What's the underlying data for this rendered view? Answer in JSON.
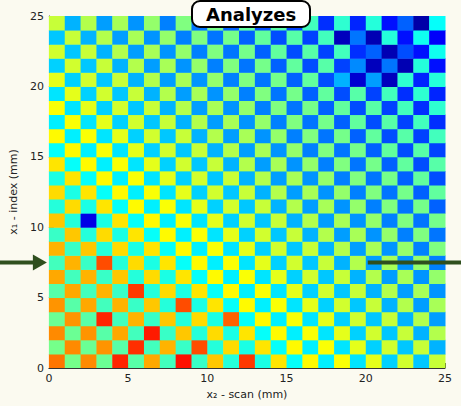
{
  "chart_data": {
    "type": "heatmap",
    "title": "Analyzes",
    "x_label": "x₂ - scan (mm)",
    "y_label": "x₁ - index (mm)",
    "xlim": [
      0,
      25
    ],
    "xticks": [
      0,
      5,
      10,
      15,
      20,
      25
    ],
    "ylim": [
      0,
      25
    ],
    "yticks": [
      0,
      5,
      10,
      15,
      20,
      25
    ],
    "x": [
      0.5,
      1.5,
      2.5,
      3.5,
      4.5,
      5.5,
      6.5,
      7.5,
      8.5,
      9.5,
      10.5,
      11.5,
      12.5,
      13.5,
      14.5,
      15.5,
      16.5,
      17.5,
      18.5,
      19.5,
      20.5,
      21.5,
      22.5,
      23.5,
      24.5
    ],
    "y": [
      0.5,
      1.5,
      2.5,
      3.5,
      4.5,
      5.5,
      6.5,
      7.5,
      8.5,
      9.5,
      10.5,
      11.5,
      12.5,
      13.5,
      14.5,
      15.5,
      16.5,
      17.5,
      18.5,
      19.5,
      20.5,
      21.5,
      22.5,
      23.5,
      24.5
    ],
    "zlim": [
      0,
      100
    ],
    "cells": [
      [
        76,
        49,
        74,
        48,
        84,
        46,
        71,
        44,
        86,
        43,
        68,
        41,
        82,
        40,
        65,
        38,
        63,
        36,
        62,
        35,
        60,
        33,
        58,
        32,
        57
      ],
      [
        49,
        74,
        48,
        73,
        46,
        83,
        44,
        70,
        43,
        80,
        41,
        66,
        40,
        65,
        38,
        63,
        36,
        62,
        35,
        60,
        33,
        58,
        32,
        57,
        30
      ],
      [
        74,
        48,
        73,
        46,
        71,
        44,
        85,
        43,
        68,
        41,
        66,
        40,
        65,
        38,
        63,
        36,
        62,
        35,
        60,
        33,
        58,
        32,
        57,
        30,
        55
      ],
      [
        48,
        73,
        46,
        84,
        44,
        70,
        43,
        68,
        41,
        66,
        40,
        78,
        38,
        63,
        36,
        62,
        35,
        60,
        33,
        58,
        32,
        57,
        30,
        55,
        28
      ],
      [
        73,
        46,
        71,
        44,
        70,
        43,
        68,
        41,
        80,
        40,
        65,
        38,
        63,
        36,
        62,
        35,
        60,
        33,
        58,
        32,
        57,
        30,
        55,
        28,
        54
      ],
      [
        46,
        71,
        44,
        70,
        43,
        82,
        41,
        66,
        40,
        65,
        38,
        63,
        36,
        62,
        35,
        60,
        33,
        58,
        32,
        57,
        30,
        55,
        28,
        54,
        27
      ],
      [
        71,
        44,
        70,
        43,
        68,
        41,
        66,
        40,
        65,
        38,
        63,
        36,
        62,
        35,
        60,
        33,
        58,
        32,
        57,
        30,
        55,
        28,
        54,
        27,
        52
      ],
      [
        44,
        70,
        43,
        80,
        41,
        66,
        40,
        65,
        38,
        63,
        36,
        62,
        35,
        60,
        33,
        58,
        32,
        57,
        30,
        55,
        28,
        54,
        27,
        52,
        25
      ],
      [
        70,
        43,
        68,
        41,
        66,
        40,
        65,
        38,
        63,
        36,
        62,
        35,
        60,
        33,
        58,
        32,
        57,
        30,
        55,
        28,
        54,
        27,
        52,
        25,
        50
      ],
      [
        43,
        68,
        41,
        66,
        40,
        65,
        38,
        63,
        36,
        62,
        35,
        60,
        33,
        58,
        32,
        57,
        30,
        55,
        28,
        54,
        27,
        52,
        25,
        50,
        24
      ],
      [
        68,
        41,
        10,
        40,
        65,
        38,
        63,
        36,
        62,
        35,
        60,
        33,
        58,
        32,
        57,
        30,
        55,
        28,
        54,
        27,
        52,
        25,
        50,
        24,
        49
      ],
      [
        41,
        66,
        40,
        65,
        38,
        63,
        36,
        62,
        35,
        60,
        33,
        58,
        32,
        57,
        30,
        55,
        28,
        54,
        27,
        52,
        25,
        50,
        24,
        49,
        22
      ],
      [
        66,
        40,
        65,
        38,
        63,
        36,
        62,
        35,
        60,
        33,
        58,
        32,
        57,
        30,
        55,
        28,
        54,
        27,
        52,
        25,
        50,
        24,
        49,
        22,
        47
      ],
      [
        40,
        65,
        38,
        63,
        36,
        62,
        35,
        60,
        33,
        58,
        32,
        57,
        30,
        55,
        28,
        54,
        27,
        52,
        25,
        50,
        24,
        49,
        22,
        47,
        20
      ],
      [
        65,
        38,
        63,
        36,
        62,
        35,
        60,
        33,
        58,
        32,
        57,
        30,
        55,
        28,
        54,
        27,
        52,
        25,
        50,
        24,
        49,
        22,
        47,
        20,
        46
      ],
      [
        38,
        63,
        36,
        62,
        35,
        60,
        33,
        58,
        32,
        57,
        30,
        55,
        28,
        54,
        27,
        52,
        25,
        50,
        24,
        49,
        22,
        47,
        20,
        46,
        19
      ],
      [
        63,
        36,
        62,
        35,
        60,
        33,
        58,
        32,
        57,
        30,
        55,
        28,
        54,
        27,
        52,
        25,
        50,
        24,
        49,
        22,
        47,
        20,
        46,
        19,
        44
      ],
      [
        36,
        62,
        35,
        60,
        33,
        58,
        32,
        57,
        30,
        55,
        28,
        54,
        27,
        52,
        25,
        50,
        24,
        49,
        22,
        47,
        20,
        46,
        19,
        44,
        17
      ],
      [
        62,
        35,
        60,
        33,
        58,
        32,
        57,
        30,
        55,
        28,
        54,
        27,
        52,
        25,
        50,
        24,
        49,
        22,
        47,
        20,
        46,
        19,
        44,
        17,
        42
      ],
      [
        35,
        60,
        33,
        58,
        32,
        57,
        30,
        55,
        28,
        54,
        27,
        52,
        25,
        50,
        24,
        49,
        22,
        47,
        20,
        46,
        19,
        44,
        17,
        42,
        16
      ],
      [
        60,
        33,
        58,
        32,
        57,
        30,
        55,
        28,
        54,
        27,
        52,
        25,
        50,
        24,
        49,
        22,
        47,
        20,
        30,
        8,
        28,
        6,
        42,
        16,
        41
      ],
      [
        33,
        58,
        32,
        57,
        30,
        55,
        28,
        54,
        27,
        52,
        25,
        50,
        24,
        49,
        22,
        47,
        20,
        46,
        19,
        26,
        6,
        24,
        5,
        41,
        14
      ],
      [
        58,
        32,
        57,
        30,
        55,
        28,
        54,
        27,
        52,
        25,
        50,
        24,
        49,
        22,
        47,
        20,
        46,
        19,
        44,
        17,
        22,
        5,
        20,
        14,
        39
      ],
      [
        32,
        57,
        30,
        55,
        28,
        54,
        27,
        52,
        25,
        50,
        24,
        49,
        22,
        47,
        20,
        46,
        19,
        44,
        6,
        24,
        5,
        41,
        14,
        39,
        12
      ],
      [
        57,
        30,
        55,
        28,
        54,
        27,
        52,
        25,
        50,
        24,
        49,
        22,
        47,
        20,
        46,
        19,
        44,
        17,
        42,
        16,
        41,
        14,
        22,
        4,
        38
      ]
    ]
  }
}
